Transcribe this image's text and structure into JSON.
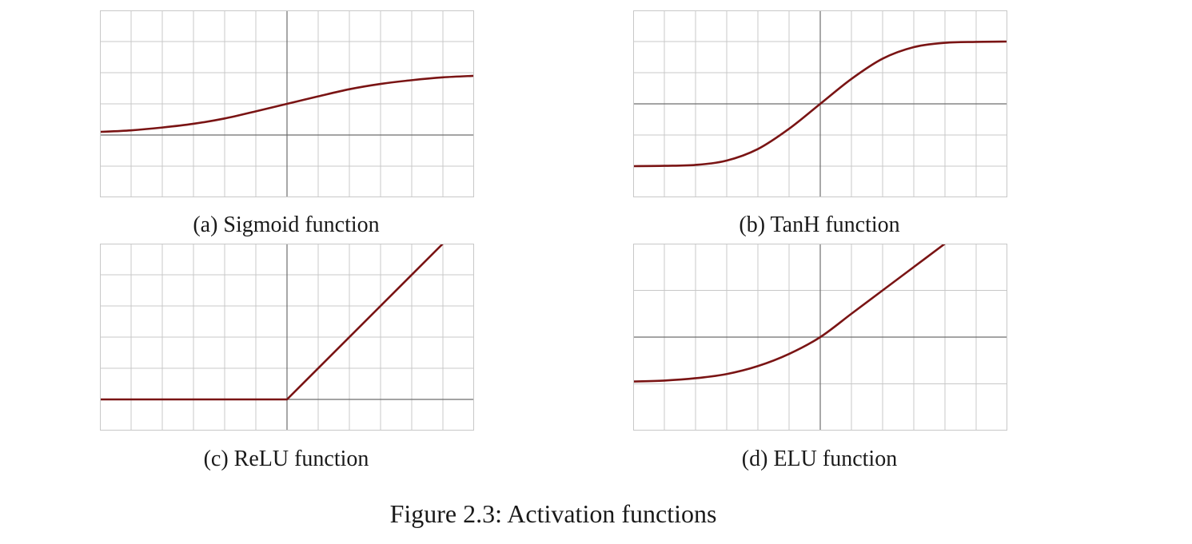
{
  "figure_caption": "Figure 2.3: Activation functions",
  "colors": {
    "curve": "#7a1414",
    "grid": "#c8c8c8",
    "axis": "#6e6e6e"
  },
  "chart_data": [
    {
      "type": "line",
      "caption": "(a) Sigmoid function",
      "xlim": [
        -6,
        6
      ],
      "ylim": [
        -2,
        4
      ],
      "grid": true,
      "x": [
        -6,
        -5,
        -4,
        -3,
        -2,
        -1,
        0,
        1,
        2,
        3,
        4,
        5,
        6
      ],
      "series": [
        {
          "values": [
            0.1,
            0.15,
            0.24,
            0.36,
            0.53,
            0.76,
            1.0,
            1.24,
            1.47,
            1.64,
            1.76,
            1.85,
            1.9
          ]
        }
      ]
    },
    {
      "type": "line",
      "caption": "(b) TanH function",
      "xlim": [
        -6,
        6
      ],
      "ylim": [
        -3,
        3
      ],
      "grid": true,
      "x": [
        -6,
        -5,
        -4,
        -3,
        -2,
        -1,
        0,
        1,
        2,
        3,
        4,
        5,
        6
      ],
      "series": [
        {
          "values": [
            -2.0,
            -1.99,
            -1.96,
            -1.82,
            -1.45,
            -0.8,
            0.0,
            0.8,
            1.45,
            1.82,
            1.96,
            1.99,
            2.0
          ]
        }
      ]
    },
    {
      "type": "line",
      "caption": "(c) ReLU function",
      "xlim": [
        -6,
        6
      ],
      "ylim": [
        -1,
        5
      ],
      "grid": true,
      "x": [
        -6,
        0,
        5
      ],
      "series": [
        {
          "values": [
            0,
            0,
            5
          ]
        }
      ]
    },
    {
      "type": "line",
      "caption": "(d) ELU function",
      "xlim": [
        -6,
        6
      ],
      "ylim": [
        -2,
        2
      ],
      "grid": true,
      "x": [
        -6,
        -5,
        -4,
        -3,
        -2,
        -1,
        0,
        1,
        2,
        3,
        4,
        4.0
      ],
      "series": [
        {
          "values": [
            -0.95,
            -0.93,
            -0.88,
            -0.79,
            -0.62,
            -0.36,
            0,
            0.5,
            1.0,
            1.5,
            2.0,
            2.0
          ]
        }
      ]
    }
  ]
}
